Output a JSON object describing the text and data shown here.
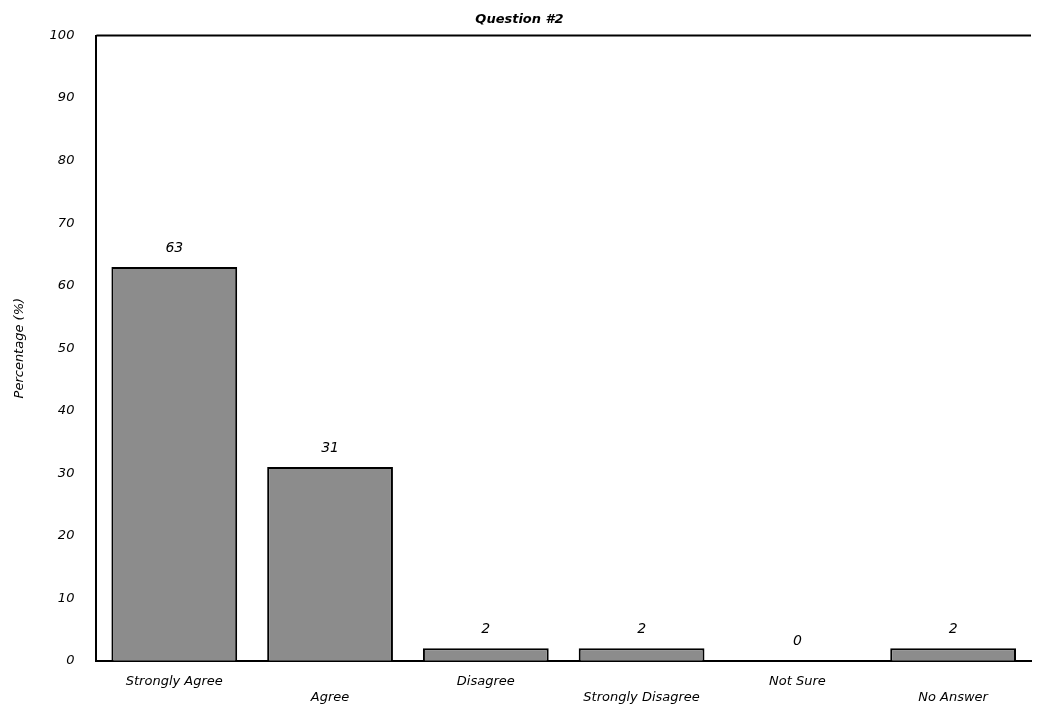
{
  "chart_data": {
    "type": "bar",
    "title": "Question #2",
    "ylabel": "Percentage (%)",
    "categories": [
      "Strongly Agree",
      "Agree",
      "Disagree",
      "Strongly Disagree",
      "Not Sure",
      "No Answer"
    ],
    "values": [
      63,
      31,
      2,
      2,
      0,
      2
    ],
    "color": "#8c8c8c",
    "ylim": [
      0,
      100
    ],
    "yticks": [
      0,
      10,
      20,
      30,
      40,
      50,
      60,
      70,
      80,
      90,
      100
    ],
    "grid": false,
    "legend": false,
    "data_labels": true
  }
}
